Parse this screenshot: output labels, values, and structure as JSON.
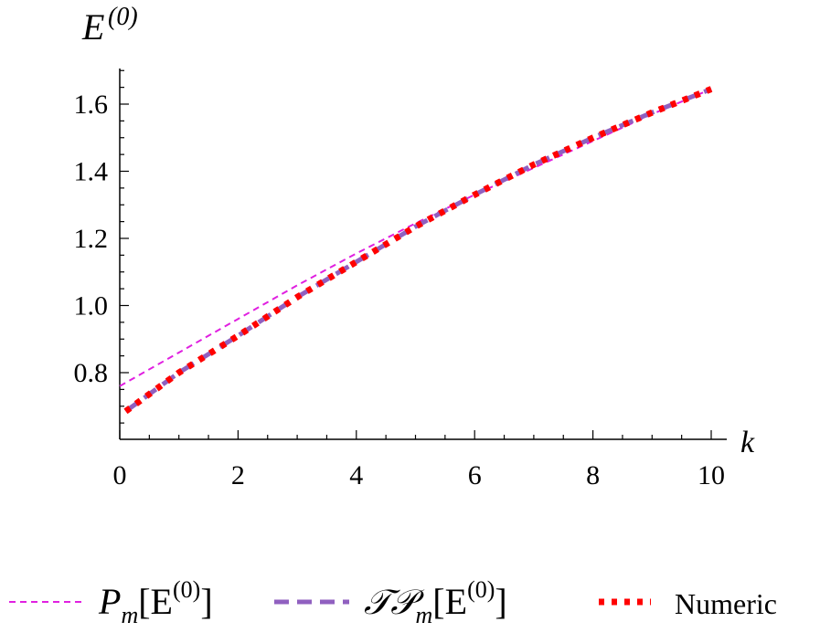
{
  "chart_data": {
    "type": "line",
    "xlabel": "k",
    "ylabel": "E(0)",
    "xlim": [
      0,
      10
    ],
    "ylim": [
      0.56,
      1.7
    ],
    "x_ticks": [
      "0",
      "2",
      "4",
      "6",
      "8",
      "10"
    ],
    "y_ticks": [
      "0.8",
      "1.0",
      "1.2",
      "1.4",
      "1.6"
    ],
    "grid": false,
    "legend_position": "bottom",
    "series": [
      {
        "name": "Pm[E(0)]",
        "style": "thin-dashed",
        "color": "#e020e0",
        "x": [
          0,
          1,
          2,
          3,
          4,
          5,
          6,
          7,
          8,
          9,
          10
        ],
        "y": [
          0.76,
          0.86,
          0.96,
          1.06,
          1.155,
          1.245,
          1.33,
          1.41,
          1.49,
          1.57,
          1.645
        ]
      },
      {
        "name": "TPm[E(0)]",
        "style": "thick-dashed",
        "color": "#9060c0",
        "x": [
          0.1,
          1,
          2,
          3,
          4,
          5,
          6,
          7,
          8,
          9,
          10
        ],
        "y": [
          0.685,
          0.8,
          0.91,
          1.025,
          1.13,
          1.235,
          1.33,
          1.42,
          1.5,
          1.575,
          1.645
        ]
      },
      {
        "name": "Numeric",
        "style": "dotted",
        "color": "#ff0000",
        "x": [
          0.1,
          1,
          2,
          3,
          4,
          5,
          6,
          7,
          8,
          9,
          10
        ],
        "y": [
          0.685,
          0.8,
          0.91,
          1.025,
          1.13,
          1.235,
          1.33,
          1.42,
          1.5,
          1.575,
          1.645
        ]
      }
    ],
    "legend": [
      {
        "base": "P",
        "sub": "m",
        "arg": "[E",
        "sup": "(0)",
        "close": "]"
      },
      {
        "base": "𝒯𝒫",
        "sub": "m",
        "arg": "[E",
        "sup": "(0)",
        "close": "]"
      },
      {
        "text": "Numeric"
      }
    ]
  }
}
